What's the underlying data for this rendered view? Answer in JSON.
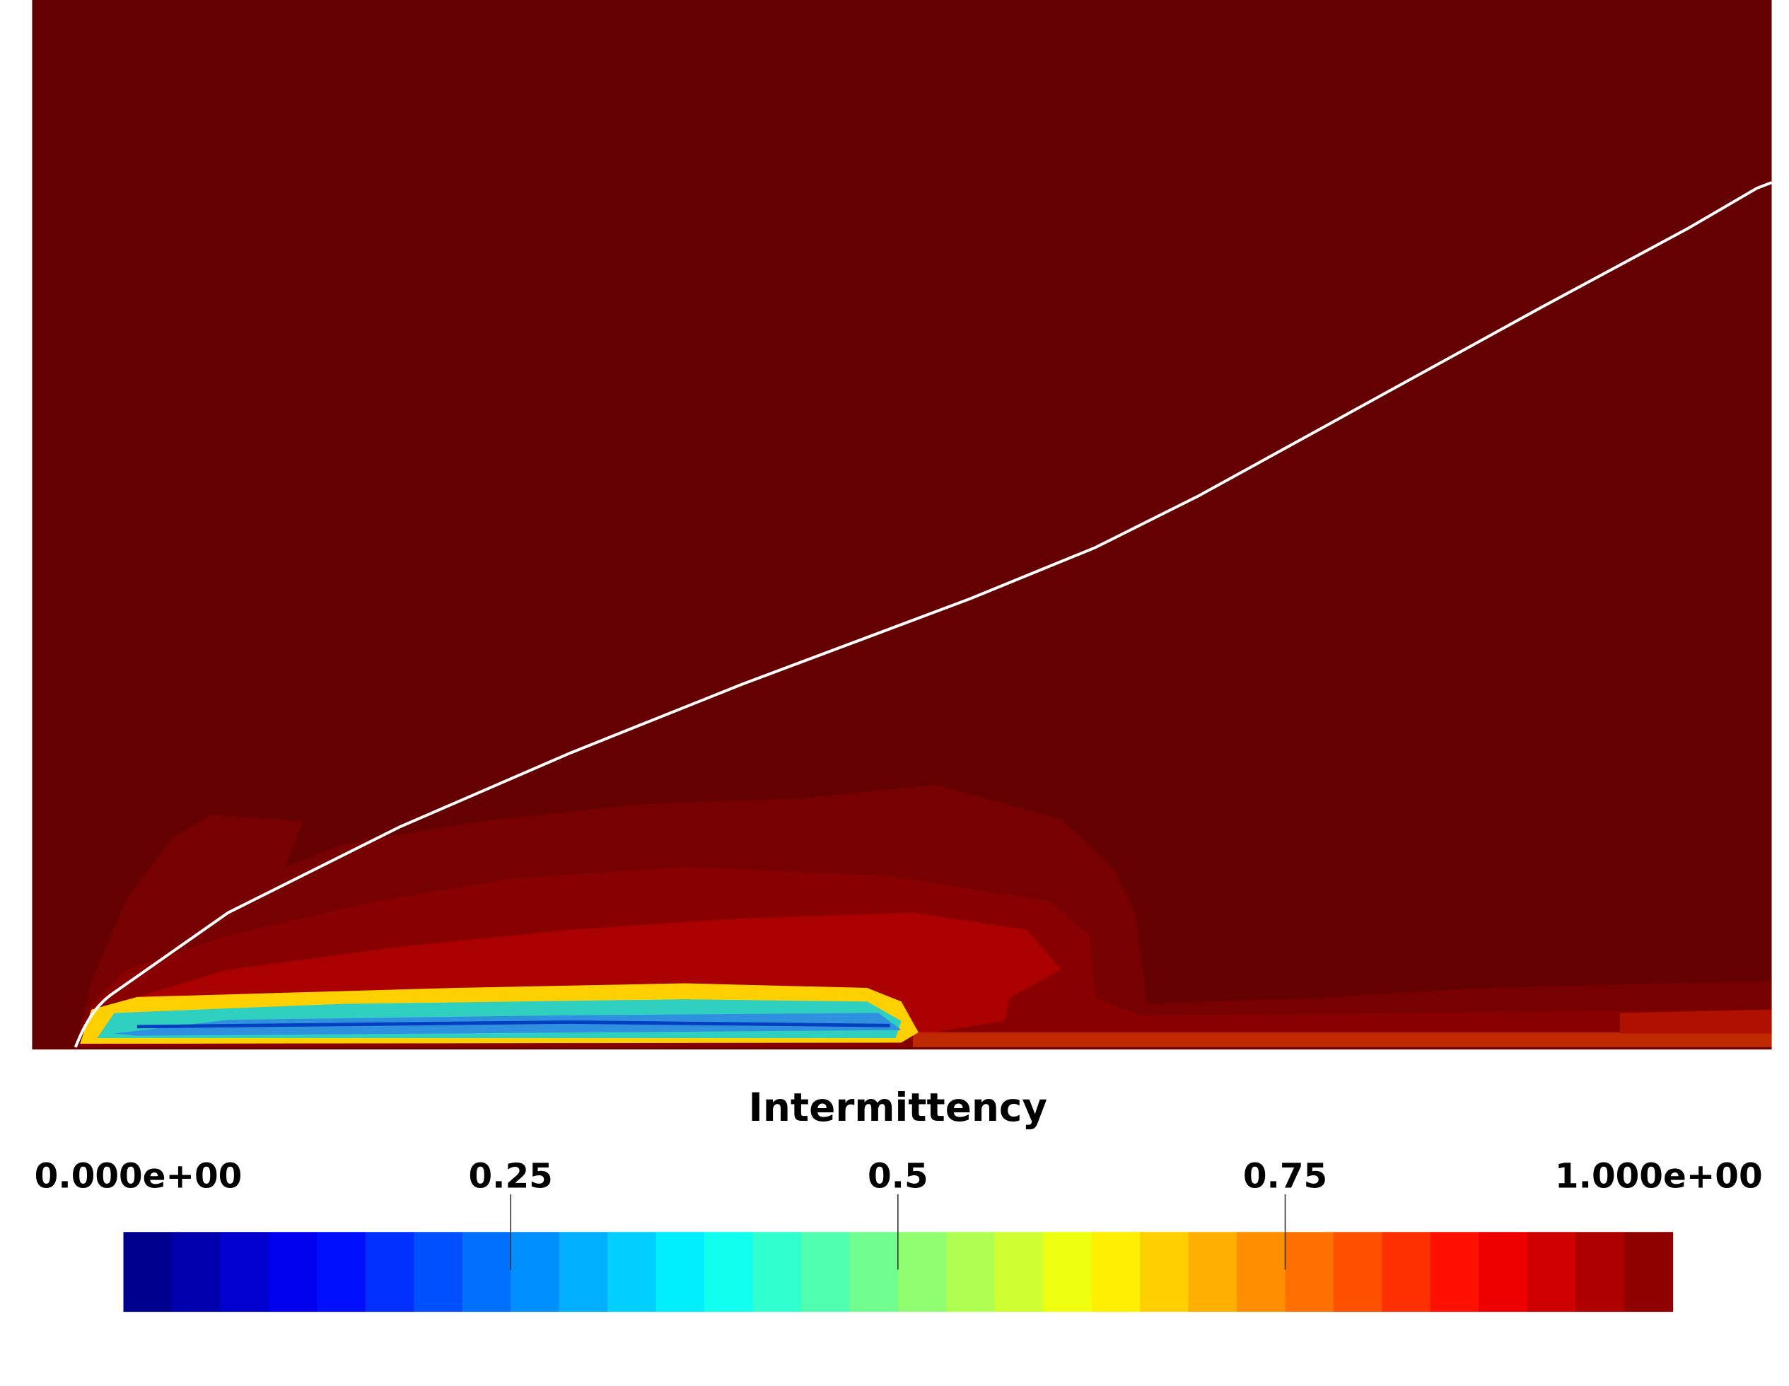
{
  "colorbar": {
    "title": "Intermittency",
    "range": [
      0,
      1
    ],
    "range_labels": [
      {
        "value": 0,
        "label": "0.000e+00"
      },
      {
        "value": 1,
        "label": "1.000e+00"
      }
    ],
    "ticks": [
      0.25,
      0.5,
      0.75
    ]
  }
}
